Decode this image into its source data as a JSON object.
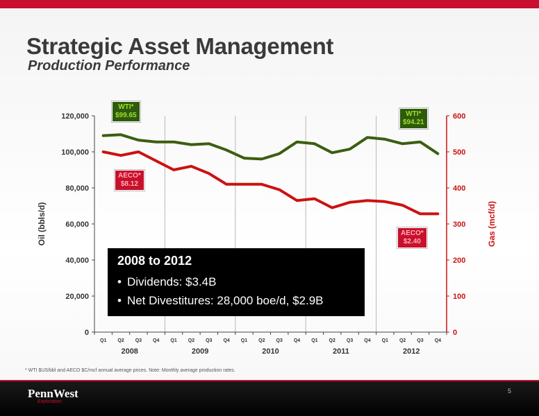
{
  "slide": {
    "title": "Strategic Asset Management",
    "subtitle": "Production Performance",
    "footnote": "* WTI $US/bbl and AECO $C/mcf annual  average prices. Note: Monthly average production rates.",
    "page_number": "5",
    "logo_name": "PennWest",
    "logo_sub": "Exploration",
    "accent_color": "#c8102e"
  },
  "infobox": {
    "title": "2008 to 2012",
    "items": [
      "Dividends: $3.4B",
      "Net Divestitures: 28,000 boe/d, $2.9B"
    ]
  },
  "callouts": {
    "wti_2008": [
      "WTI*",
      "$99.65"
    ],
    "wti_2012": [
      "WTI*",
      "$94.21"
    ],
    "aeco_2008": [
      "AECO*",
      "$8.12"
    ],
    "aeco_2012": [
      "AECO*",
      "$2.40"
    ]
  },
  "chart_data": {
    "type": "line",
    "categories": [
      "Q1",
      "Q2",
      "Q3",
      "Q4",
      "Q1",
      "Q2",
      "Q3",
      "Q4",
      "Q1",
      "Q2",
      "Q3",
      "Q4",
      "Q1",
      "Q2",
      "Q3",
      "Q4",
      "Q1",
      "Q2",
      "Q3",
      "Q4"
    ],
    "years": [
      "2008",
      "2009",
      "2010",
      "2011",
      "2012"
    ],
    "y_left": {
      "label": "Oil (bbls/d)",
      "range": [
        0,
        120000
      ],
      "ticks": [
        "0",
        "20,000",
        "40,000",
        "60,000",
        "80,000",
        "100,000",
        "120,000"
      ]
    },
    "y_right": {
      "label": "Gas (mcf/d)",
      "range": [
        0,
        600
      ],
      "ticks": [
        "0",
        "100",
        "200",
        "300",
        "400",
        "500",
        "600"
      ]
    },
    "series": [
      {
        "axis": "left",
        "color": "#3b5e10",
        "values": [
          109000,
          109500,
          106500,
          105500,
          105500,
          104000,
          104500,
          101000,
          96500,
          96000,
          99000,
          105500,
          104500,
          99500,
          101500,
          108000,
          107000,
          104500,
          105500,
          99000
        ]
      },
      {
        "axis": "right",
        "color": "#cc1111",
        "values": [
          500,
          490,
          500,
          475,
          450,
          460,
          440,
          410,
          410,
          410,
          395,
          365,
          370,
          345,
          360,
          365,
          362,
          352,
          328,
          328
        ]
      }
    ],
    "grid": "vertical year separators",
    "legend": "none"
  }
}
